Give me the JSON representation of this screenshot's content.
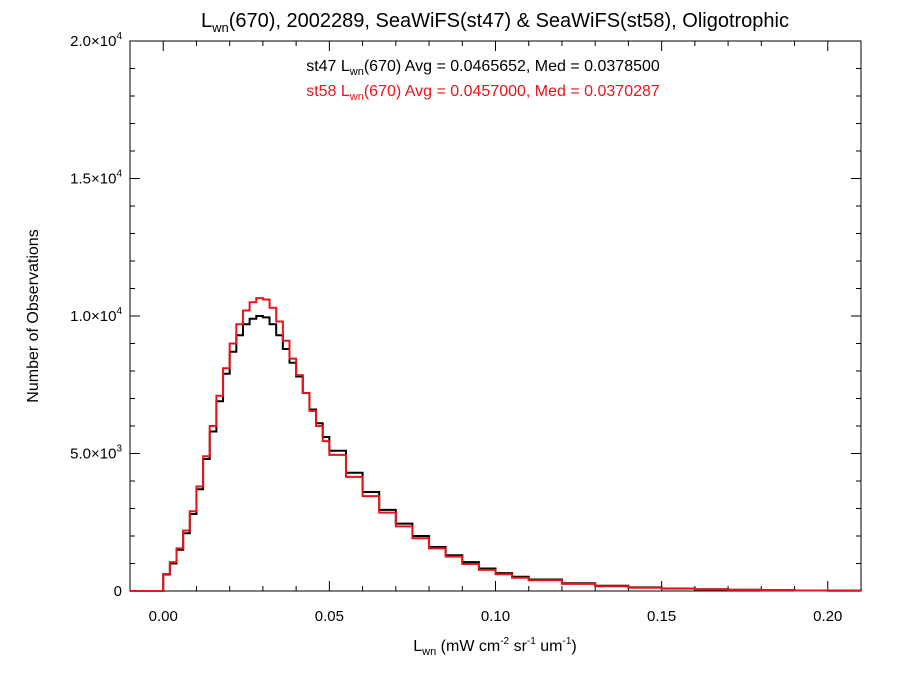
{
  "chart_data": {
    "type": "histogram",
    "title": {
      "main": "L",
      "sub": "wn",
      "rest": "(670), 2002289, SeaWiFS(st47) & SeaWiFS(st58), Oligotrophic"
    },
    "xlabel": {
      "main": "L",
      "sub": "wn",
      "unit_pre": " (mW cm",
      "exp1": "-2",
      "unit_mid": " sr",
      "exp2": "-1",
      "unit_mid2": " um",
      "exp3": "-1",
      "unit_post": ")"
    },
    "ylabel": "Number of Observations",
    "xlim": [
      -0.01,
      0.21
    ],
    "ylim": [
      0,
      20000
    ],
    "x_ticks": [
      {
        "value": 0.0,
        "label": "0.00"
      },
      {
        "value": 0.05,
        "label": "0.05"
      },
      {
        "value": 0.1,
        "label": "0.10"
      },
      {
        "value": 0.15,
        "label": "0.15"
      },
      {
        "value": 0.2,
        "label": "0.20"
      }
    ],
    "y_ticks": [
      {
        "value": 0,
        "mantissa": "0",
        "exponent": ""
      },
      {
        "value": 5000,
        "mantissa": "5.0×10",
        "exponent": "3"
      },
      {
        "value": 10000,
        "mantissa": "1.0×10",
        "exponent": "4"
      },
      {
        "value": 15000,
        "mantissa": "1.5×10",
        "exponent": "4"
      },
      {
        "value": 20000,
        "mantissa": "2.0×10",
        "exponent": "4"
      }
    ],
    "annotations": [
      {
        "pre": "st47 L",
        "sub": "wn",
        "post": "(670) Avg = 0.0465652, Med = 0.0378500",
        "color": "#000000"
      },
      {
        "pre": "st58 L",
        "sub": "wn",
        "post": "(670) Avg = 0.0457000, Med = 0.0370287",
        "color": "#e8141c"
      }
    ],
    "series": [
      {
        "key": "st47",
        "color": "#000000",
        "x": [
          -0.01,
          -0.005,
          0.0,
          0.002,
          0.004,
          0.006,
          0.008,
          0.01,
          0.012,
          0.014,
          0.016,
          0.018,
          0.02,
          0.022,
          0.024,
          0.026,
          0.028,
          0.03,
          0.032,
          0.034,
          0.036,
          0.038,
          0.04,
          0.042,
          0.044,
          0.046,
          0.048,
          0.05,
          0.055,
          0.06,
          0.065,
          0.07,
          0.075,
          0.08,
          0.085,
          0.09,
          0.095,
          0.1,
          0.105,
          0.11,
          0.12,
          0.13,
          0.14,
          0.15,
          0.16,
          0.17,
          0.18,
          0.19,
          0.2,
          0.21
        ],
        "y": [
          0,
          0,
          600,
          1000,
          1500,
          2100,
          2800,
          3700,
          4800,
          5800,
          6900,
          7900,
          8700,
          9300,
          9700,
          9900,
          10000,
          9950,
          9700,
          9300,
          8800,
          8300,
          7800,
          7200,
          6600,
          6100,
          5600,
          5100,
          4300,
          3600,
          2950,
          2450,
          2000,
          1600,
          1300,
          1050,
          820,
          650,
          520,
          420,
          280,
          190,
          130,
          90,
          65,
          45,
          30,
          20,
          12,
          8
        ]
      },
      {
        "key": "st58",
        "color": "#e8141c",
        "x": [
          -0.01,
          -0.005,
          0.0,
          0.002,
          0.004,
          0.006,
          0.008,
          0.01,
          0.012,
          0.014,
          0.016,
          0.018,
          0.02,
          0.022,
          0.024,
          0.026,
          0.028,
          0.03,
          0.032,
          0.034,
          0.036,
          0.038,
          0.04,
          0.042,
          0.044,
          0.046,
          0.048,
          0.05,
          0.055,
          0.06,
          0.065,
          0.07,
          0.075,
          0.08,
          0.085,
          0.09,
          0.095,
          0.1,
          0.105,
          0.11,
          0.12,
          0.13,
          0.14,
          0.15,
          0.16,
          0.17,
          0.18,
          0.19,
          0.2,
          0.21
        ],
        "y": [
          0,
          0,
          620,
          1050,
          1550,
          2200,
          2900,
          3800,
          4900,
          6000,
          7100,
          8100,
          9000,
          9700,
          10200,
          10500,
          10650,
          10600,
          10300,
          9800,
          9100,
          8450,
          7850,
          7200,
          6550,
          6000,
          5450,
          4950,
          4150,
          3450,
          2850,
          2350,
          1920,
          1550,
          1250,
          980,
          770,
          610,
          480,
          390,
          260,
          175,
          120,
          85,
          60,
          42,
          28,
          18,
          11,
          7
        ]
      }
    ]
  }
}
